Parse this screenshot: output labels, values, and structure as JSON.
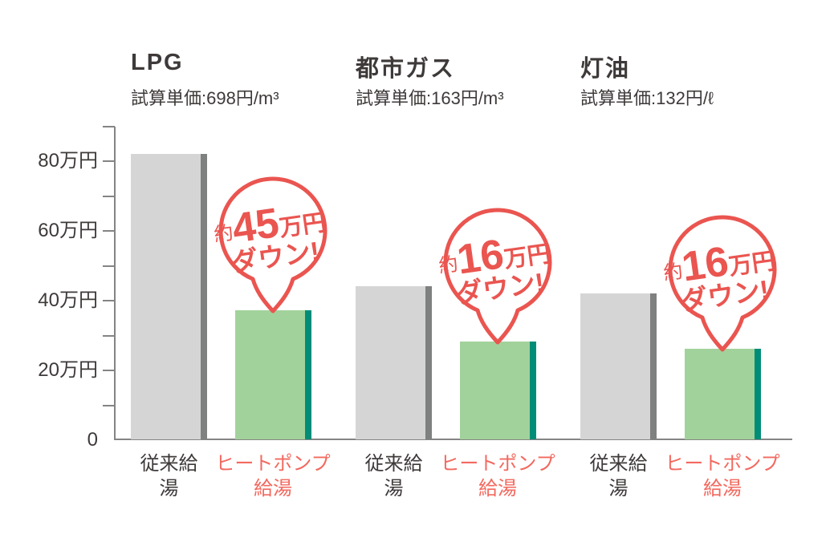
{
  "chart_data": {
    "type": "bar",
    "value_unit": "万円",
    "ylim": [
      0,
      90
    ],
    "ytick_step": 10,
    "grid": false,
    "legend_position": "none",
    "y_axis_labels": [
      {
        "text": "80万円",
        "value": 80
      },
      {
        "text": "60万円",
        "value": 60
      },
      {
        "text": "40万円",
        "value": 40
      },
      {
        "text": "20万円",
        "value": 20
      },
      {
        "text": "0",
        "value": 0
      }
    ],
    "series_labels": {
      "conventional": "従来給湯",
      "heatpump_line1": "ヒートポンプ",
      "heatpump_line2": "給湯"
    },
    "groups": [
      {
        "title": "LPG",
        "subtitle": "試算単価:698円/m³",
        "conventional": 82,
        "heatpump": 37,
        "bubble": {
          "prefix": "約",
          "amount": "45",
          "unit": "万円",
          "line2": "ダウン!"
        }
      },
      {
        "title": "都市ガス",
        "subtitle": "試算単価:163円/m³",
        "conventional": 44,
        "heatpump": 28,
        "bubble": {
          "prefix": "約",
          "amount": "16",
          "unit": "万円",
          "line2": "ダウン!"
        }
      },
      {
        "title": "灯油",
        "subtitle": "試算単価:132円/ℓ",
        "conventional": 42,
        "heatpump": 26,
        "bubble": {
          "prefix": "約",
          "amount": "16",
          "unit": "万円",
          "line2": "ダウン!"
        }
      }
    ],
    "colors": {
      "bar_gray": "#d5d5d6",
      "bar_gray_edge": "#7f8080",
      "bar_green": "#a2d29b",
      "bar_green_edge": "#008d78",
      "red": "#ea5550",
      "label_red": "#f2695f",
      "text_dark": "#3e3a39",
      "axis": "#848484"
    }
  }
}
